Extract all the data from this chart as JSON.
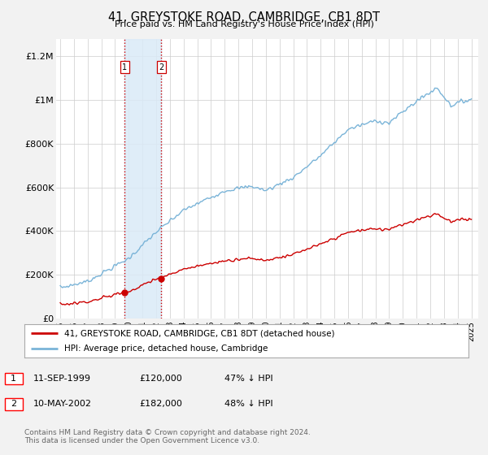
{
  "title": "41, GREYSTOKE ROAD, CAMBRIDGE, CB1 8DT",
  "subtitle": "Price paid vs. HM Land Registry's House Price Index (HPI)",
  "ylabel_ticks": [
    "£0",
    "£200K",
    "£400K",
    "£600K",
    "£800K",
    "£1M",
    "£1.2M"
  ],
  "ytick_values": [
    0,
    200000,
    400000,
    600000,
    800000,
    1000000,
    1200000
  ],
  "ylim": [
    0,
    1280000
  ],
  "xlim_start": 1994.7,
  "xlim_end": 2025.5,
  "sale1_date": 1999.7,
  "sale1_price": 120000,
  "sale1_label": "1",
  "sale2_date": 2002.36,
  "sale2_price": 182000,
  "sale2_label": "2",
  "hpi_color": "#7ab4d8",
  "price_color": "#cc0000",
  "shade_color": "#daeaf7",
  "vline_color": "#cc0000",
  "legend_label1": "41, GREYSTOKE ROAD, CAMBRIDGE, CB1 8DT (detached house)",
  "legend_label2": "HPI: Average price, detached house, Cambridge",
  "table_row1": [
    "1",
    "11-SEP-1999",
    "£120,000",
    "47% ↓ HPI"
  ],
  "table_row2": [
    "2",
    "10-MAY-2002",
    "£182,000",
    "48% ↓ HPI"
  ],
  "footnote": "Contains HM Land Registry data © Crown copyright and database right 2024.\nThis data is licensed under the Open Government Licence v3.0.",
  "background_color": "#f2f2f2",
  "plot_bg_color": "#ffffff"
}
